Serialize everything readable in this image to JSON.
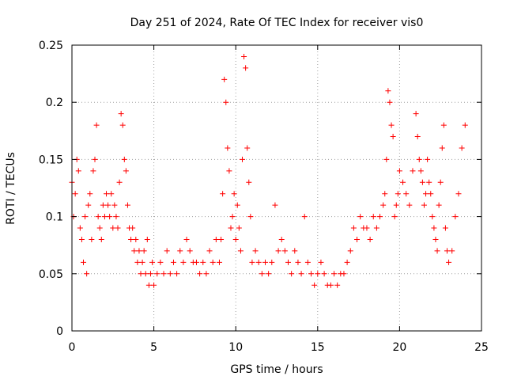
{
  "chart_data": {
    "type": "scatter",
    "title": "Day 251 of 2024, Rate Of TEC Index for receiver vis0",
    "xlabel": "GPS time / hours",
    "ylabel": "ROTI / TECUs",
    "xlim": [
      0,
      25
    ],
    "ylim": [
      0,
      0.25
    ],
    "x_ticks": [
      0,
      5,
      10,
      15,
      20,
      25
    ],
    "y_ticks": [
      0,
      0.05,
      0.1,
      0.15,
      0.2,
      0.25
    ],
    "x_tick_labels": [
      "0",
      "5",
      "10",
      "15",
      "20",
      "25"
    ],
    "y_tick_labels": [
      "0",
      "0.05",
      "0.1",
      "0.15",
      "0.2",
      "0.25"
    ],
    "grid": true,
    "marker": "+",
    "color": "#ff0000",
    "series": [
      {
        "x": [
          0.0,
          0.1,
          0.2,
          0.3,
          0.4,
          0.5,
          0.6,
          0.7,
          0.8,
          0.9,
          1.0,
          1.1,
          1.2,
          1.3,
          1.4,
          1.5,
          1.6,
          1.7,
          1.8,
          1.9,
          2.0,
          2.1,
          2.2,
          2.3,
          2.4,
          2.5,
          2.6,
          2.7,
          2.8,
          2.9,
          3.0,
          3.1,
          3.2,
          3.3,
          3.4,
          3.5,
          3.6,
          3.7,
          3.8,
          3.9,
          4.0,
          4.1,
          4.2,
          4.3,
          4.4,
          4.5,
          4.6,
          4.7,
          4.8,
          4.9,
          5.0,
          5.2,
          5.4,
          5.6,
          5.8,
          6.0,
          6.2,
          6.4,
          6.6,
          6.8,
          7.0,
          7.2,
          7.4,
          7.6,
          7.8,
          8.0,
          8.2,
          8.4,
          8.6,
          8.8,
          9.0,
          9.1,
          9.2,
          9.3,
          9.4,
          9.5,
          9.6,
          9.7,
          9.8,
          9.9,
          10.0,
          10.1,
          10.2,
          10.3,
          10.4,
          10.5,
          10.6,
          10.7,
          10.8,
          10.9,
          11.0,
          11.2,
          11.4,
          11.6,
          11.8,
          12.0,
          12.2,
          12.4,
          12.6,
          12.8,
          13.0,
          13.2,
          13.4,
          13.6,
          13.8,
          14.0,
          14.2,
          14.4,
          14.6,
          14.8,
          15.0,
          15.2,
          15.4,
          15.6,
          15.8,
          16.0,
          16.2,
          16.4,
          16.6,
          16.8,
          17.0,
          17.2,
          17.4,
          17.6,
          17.8,
          18.0,
          18.2,
          18.4,
          18.6,
          18.8,
          19.0,
          19.1,
          19.2,
          19.3,
          19.4,
          19.5,
          19.6,
          19.7,
          19.8,
          19.9,
          20.0,
          20.2,
          20.4,
          20.6,
          20.8,
          21.0,
          21.1,
          21.2,
          21.3,
          21.4,
          21.5,
          21.6,
          21.7,
          21.8,
          21.9,
          22.0,
          22.1,
          22.2,
          22.3,
          22.4,
          22.5,
          22.6,
          22.7,
          22.8,
          22.9,
          23.0,
          23.2,
          23.4,
          23.6,
          23.8,
          24.0
        ],
        "y": [
          0.13,
          0.1,
          0.12,
          0.15,
          0.14,
          0.09,
          0.08,
          0.06,
          0.1,
          0.05,
          0.11,
          0.12,
          0.08,
          0.14,
          0.15,
          0.18,
          0.1,
          0.09,
          0.08,
          0.11,
          0.1,
          0.12,
          0.11,
          0.1,
          0.12,
          0.09,
          0.11,
          0.1,
          0.09,
          0.13,
          0.19,
          0.18,
          0.15,
          0.14,
          0.11,
          0.09,
          0.08,
          0.09,
          0.07,
          0.08,
          0.06,
          0.07,
          0.05,
          0.06,
          0.07,
          0.05,
          0.08,
          0.04,
          0.05,
          0.06,
          0.04,
          0.05,
          0.06,
          0.05,
          0.07,
          0.05,
          0.06,
          0.05,
          0.07,
          0.06,
          0.08,
          0.07,
          0.06,
          0.06,
          0.05,
          0.06,
          0.05,
          0.07,
          0.06,
          0.08,
          0.06,
          0.08,
          0.12,
          0.22,
          0.2,
          0.16,
          0.14,
          0.09,
          0.1,
          0.12,
          0.08,
          0.11,
          0.09,
          0.07,
          0.15,
          0.24,
          0.23,
          0.16,
          0.13,
          0.1,
          0.06,
          0.07,
          0.06,
          0.05,
          0.06,
          0.05,
          0.06,
          0.11,
          0.07,
          0.08,
          0.07,
          0.06,
          0.05,
          0.07,
          0.06,
          0.05,
          0.1,
          0.06,
          0.05,
          0.04,
          0.05,
          0.06,
          0.05,
          0.04,
          0.04,
          0.05,
          0.04,
          0.05,
          0.05,
          0.06,
          0.07,
          0.09,
          0.08,
          0.1,
          0.09,
          0.09,
          0.08,
          0.1,
          0.09,
          0.1,
          0.11,
          0.12,
          0.15,
          0.21,
          0.2,
          0.18,
          0.17,
          0.1,
          0.11,
          0.12,
          0.14,
          0.13,
          0.12,
          0.11,
          0.14,
          0.19,
          0.17,
          0.15,
          0.14,
          0.13,
          0.11,
          0.12,
          0.15,
          0.13,
          0.12,
          0.1,
          0.09,
          0.08,
          0.07,
          0.11,
          0.13,
          0.16,
          0.18,
          0.09,
          0.07,
          0.06,
          0.07,
          0.1,
          0.12,
          0.16,
          0.18
        ]
      }
    ]
  }
}
